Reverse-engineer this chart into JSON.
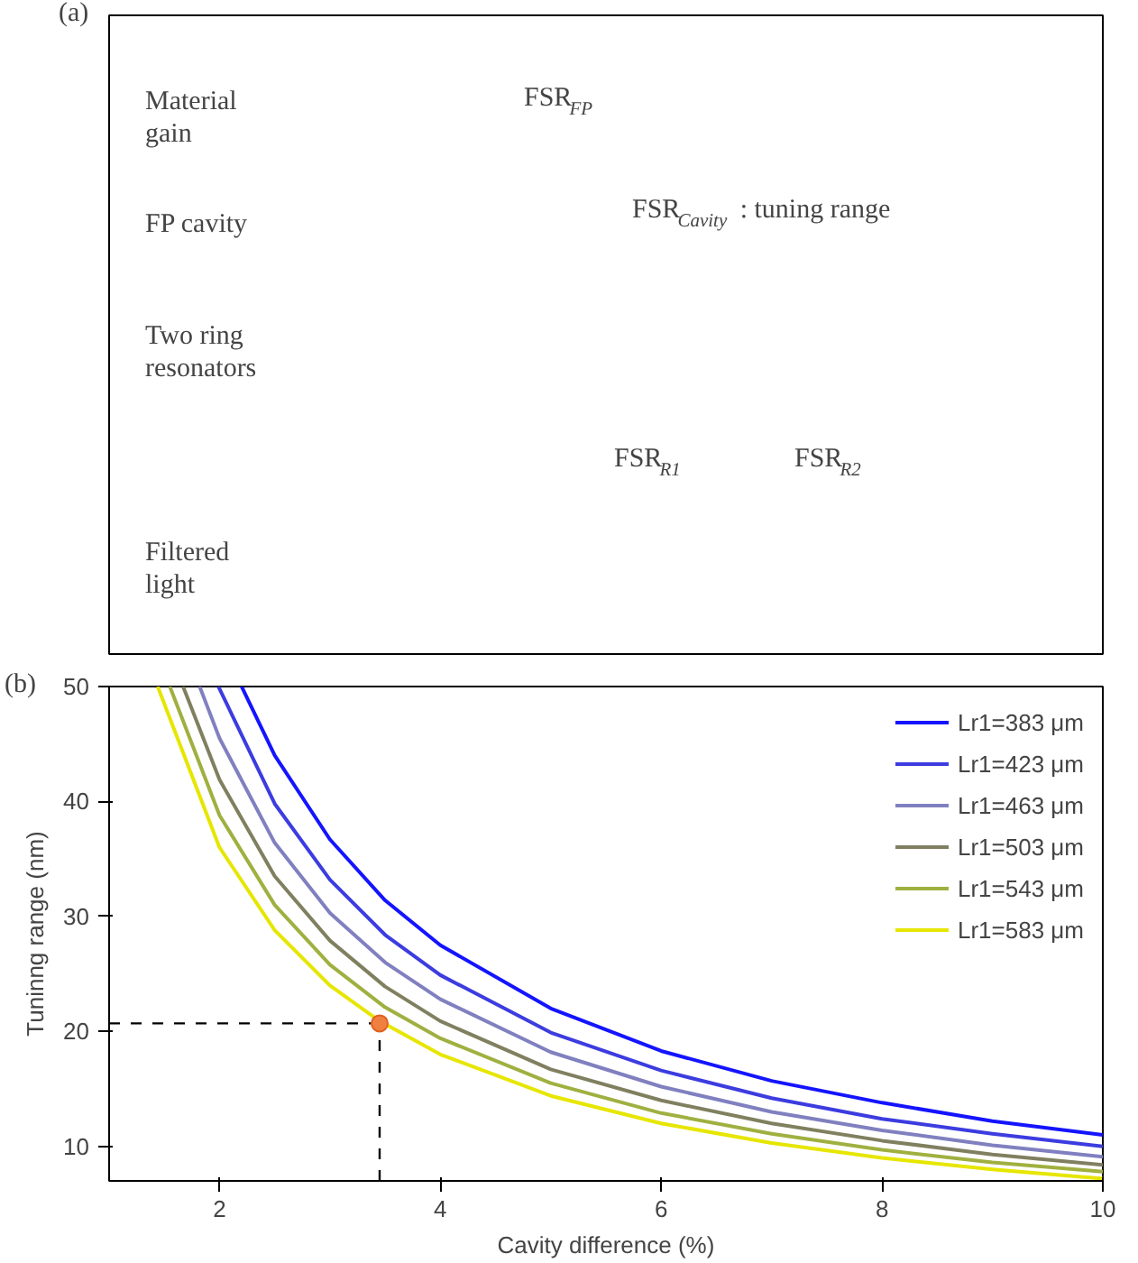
{
  "chart_data": [
    {
      "type": "other",
      "title": "(a)",
      "annotations": [
        "Material\ngain",
        "FSR$_{FP}$",
        "FP cavity",
        "FSR$_{Cavity}$: tuning range",
        "Two ring\nresonators",
        "FSR$_{R1}$",
        "FSR$_{R2}$",
        "Filtered\nlight"
      ]
    },
    {
      "type": "line",
      "title": "(b)",
      "xlabel": "Cavity difference (%)",
      "ylabel": "Tuninng range (nm)",
      "xlim": [
        1,
        10
      ],
      "ylim": [
        7,
        50
      ],
      "xticks": [
        2,
        4,
        6,
        8,
        10
      ],
      "yticks": [
        10,
        20,
        30,
        40,
        50
      ],
      "grid": false,
      "legend": "top right",
      "series": [
        {
          "name": "Lr1=383 μm",
          "color": "#1414ff",
          "x": [
            2.2,
            2.5,
            3,
            3.5,
            4,
            5,
            6,
            7,
            8,
            9,
            10
          ],
          "values": [
            50,
            44,
            36.7,
            31.4,
            27.5,
            22,
            18.3,
            15.7,
            13.8,
            12.2,
            11
          ]
        },
        {
          "name": "Lr1=423 μm",
          "color": "#3c3ce0",
          "x": [
            1.99,
            2.5,
            3,
            3.5,
            4,
            5,
            6,
            7,
            8,
            9,
            10
          ],
          "values": [
            50,
            39.8,
            33.2,
            28.4,
            24.9,
            19.9,
            16.6,
            14.2,
            12.4,
            11.1,
            10
          ]
        },
        {
          "name": "Lr1=463 μm",
          "color": "#8080c0",
          "x": [
            1.82,
            2,
            2.5,
            3,
            3.5,
            4,
            5,
            6,
            7,
            8,
            9,
            10
          ],
          "values": [
            50,
            45.5,
            36.4,
            30.3,
            26,
            22.8,
            18.2,
            15.2,
            13,
            11.4,
            10.1,
            9.1
          ]
        },
        {
          "name": "Lr1=503 μm",
          "color": "#808060",
          "x": [
            1.67,
            2,
            2.5,
            3,
            3.5,
            4,
            5,
            6,
            7,
            8,
            9,
            10
          ],
          "values": [
            50,
            41.9,
            33.5,
            27.9,
            23.9,
            20.9,
            16.7,
            14,
            12,
            10.5,
            9.3,
            8.4
          ]
        },
        {
          "name": "Lr1=543 μm",
          "color": "#a0b040",
          "x": [
            1.55,
            2,
            2.5,
            3,
            3.5,
            4,
            5,
            6,
            7,
            8,
            9,
            10
          ],
          "values": [
            50,
            38.8,
            31,
            25.8,
            22.1,
            19.4,
            15.5,
            12.9,
            11.1,
            9.7,
            8.6,
            7.8
          ]
        },
        {
          "name": "Lr1=583 μm",
          "color": "#e6e600",
          "x": [
            1.44,
            2,
            2.5,
            3,
            3.45,
            4,
            5,
            6,
            7,
            8,
            9,
            10
          ],
          "values": [
            50,
            36,
            28.8,
            24,
            20.9,
            18,
            14.4,
            12,
            10.3,
            9,
            8,
            7.2
          ]
        },
        {
          "type": "scatter",
          "color": "#f08040",
          "x": [
            3.45
          ],
          "values": [
            20.7
          ],
          "marker": "circle"
        }
      ],
      "ref_lines": [
        {
          "axis": "x",
          "value": 3.45,
          "color": "#000000",
          "line_style": "dashed"
        },
        {
          "axis": "y",
          "value": 20.7,
          "color": "#000000",
          "line_style": "dashed"
        }
      ]
    }
  ]
}
